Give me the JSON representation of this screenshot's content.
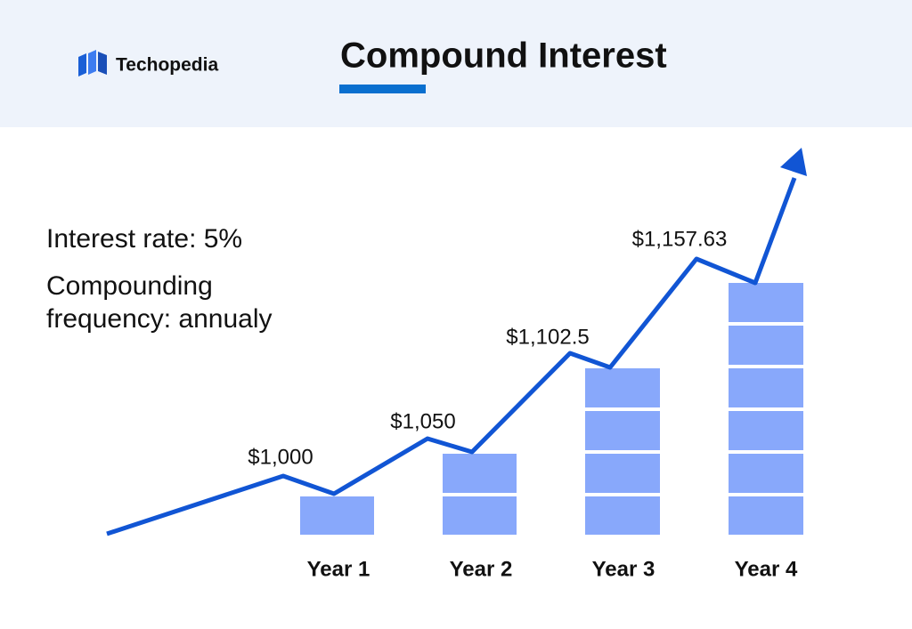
{
  "header": {
    "logo": "Techopedia",
    "title": "Compound Interest"
  },
  "notes": [
    "Interest rate: 5%",
    "Compounding",
    "frequency: annualy"
  ],
  "years": [
    {
      "label": "Year 1",
      "amount": "$1,000"
    },
    {
      "label": "Year 2",
      "amount": "$1,050"
    },
    {
      "label": "Year 3",
      "amount": "$1,102.5"
    },
    {
      "label": "Year 4",
      "amount": "$1,157.63"
    }
  ]
}
